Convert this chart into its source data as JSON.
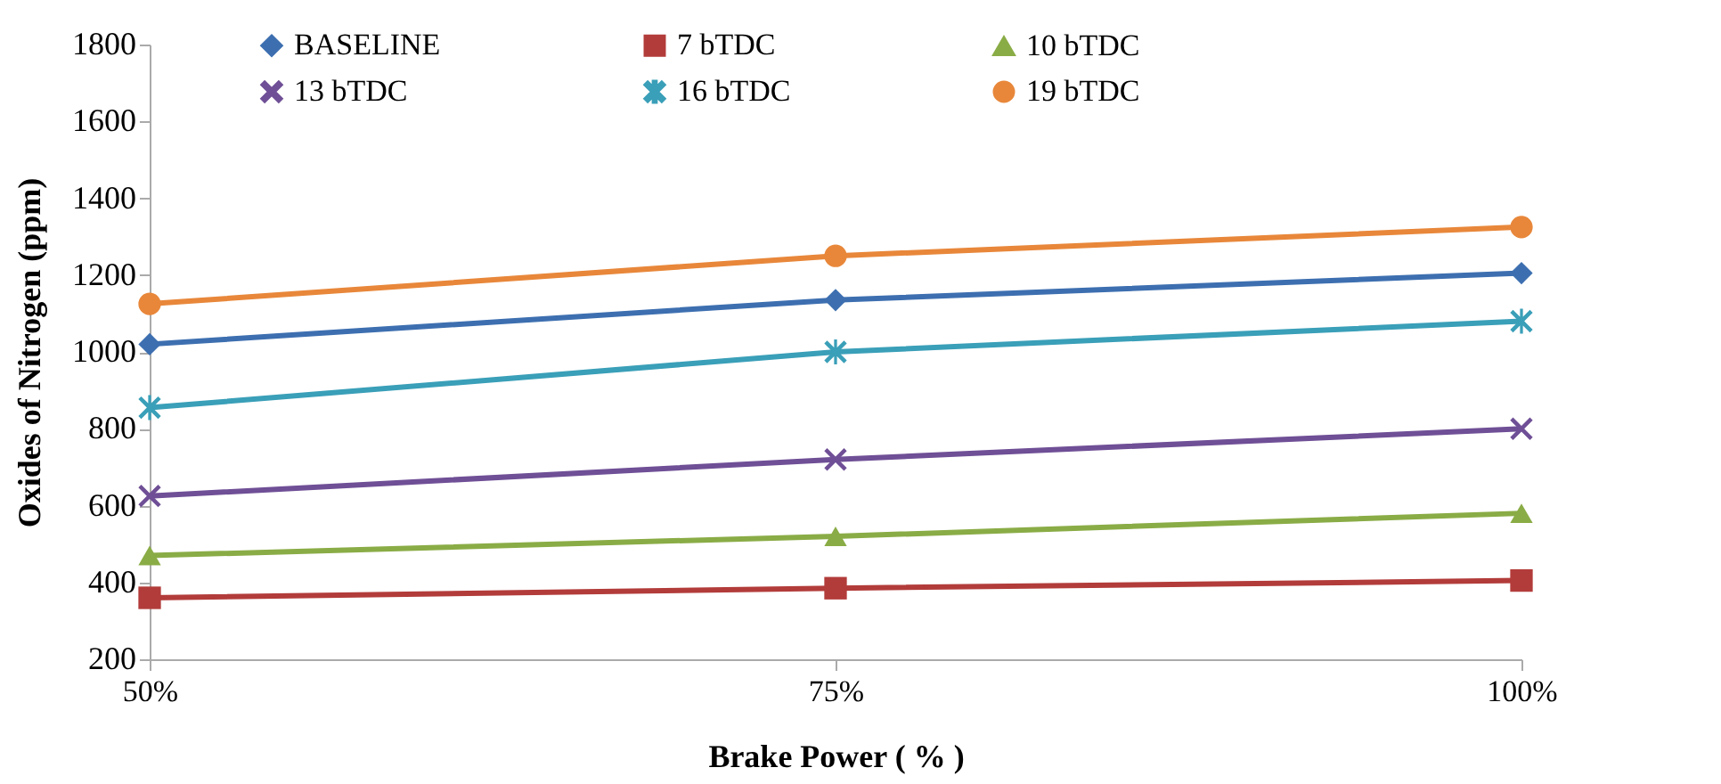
{
  "chart_data": {
    "type": "line",
    "xlabel": "Brake Power ( % )",
    "ylabel": "Oxides of Nitrogen (ppm)",
    "categories": [
      "50%",
      "75%",
      "100%"
    ],
    "ylim": [
      200,
      1800
    ],
    "yticks": [
      200,
      400,
      600,
      800,
      1000,
      1200,
      1400,
      1600,
      1800
    ],
    "grid": false,
    "legend": "top",
    "series": [
      {
        "name": "BASELINE",
        "color": "#3d6fb0",
        "marker": "diamond",
        "values": [
          1020,
          1135,
          1205
        ]
      },
      {
        "name": "7 bTDC",
        "color": "#b23c3a",
        "marker": "square",
        "values": [
          360,
          385,
          405
        ]
      },
      {
        "name": "10 bTDC",
        "color": "#8aac46",
        "marker": "triangle",
        "values": [
          470,
          520,
          580
        ]
      },
      {
        "name": "13 bTDC",
        "color": "#6f4f96",
        "marker": "cross",
        "values": [
          625,
          720,
          800
        ]
      },
      {
        "name": "16 bTDC",
        "color": "#3a9fb8",
        "marker": "star",
        "values": [
          855,
          1000,
          1080
        ]
      },
      {
        "name": "19 bTDC",
        "color": "#e8873a",
        "marker": "circle",
        "values": [
          1125,
          1250,
          1325
        ]
      }
    ]
  }
}
